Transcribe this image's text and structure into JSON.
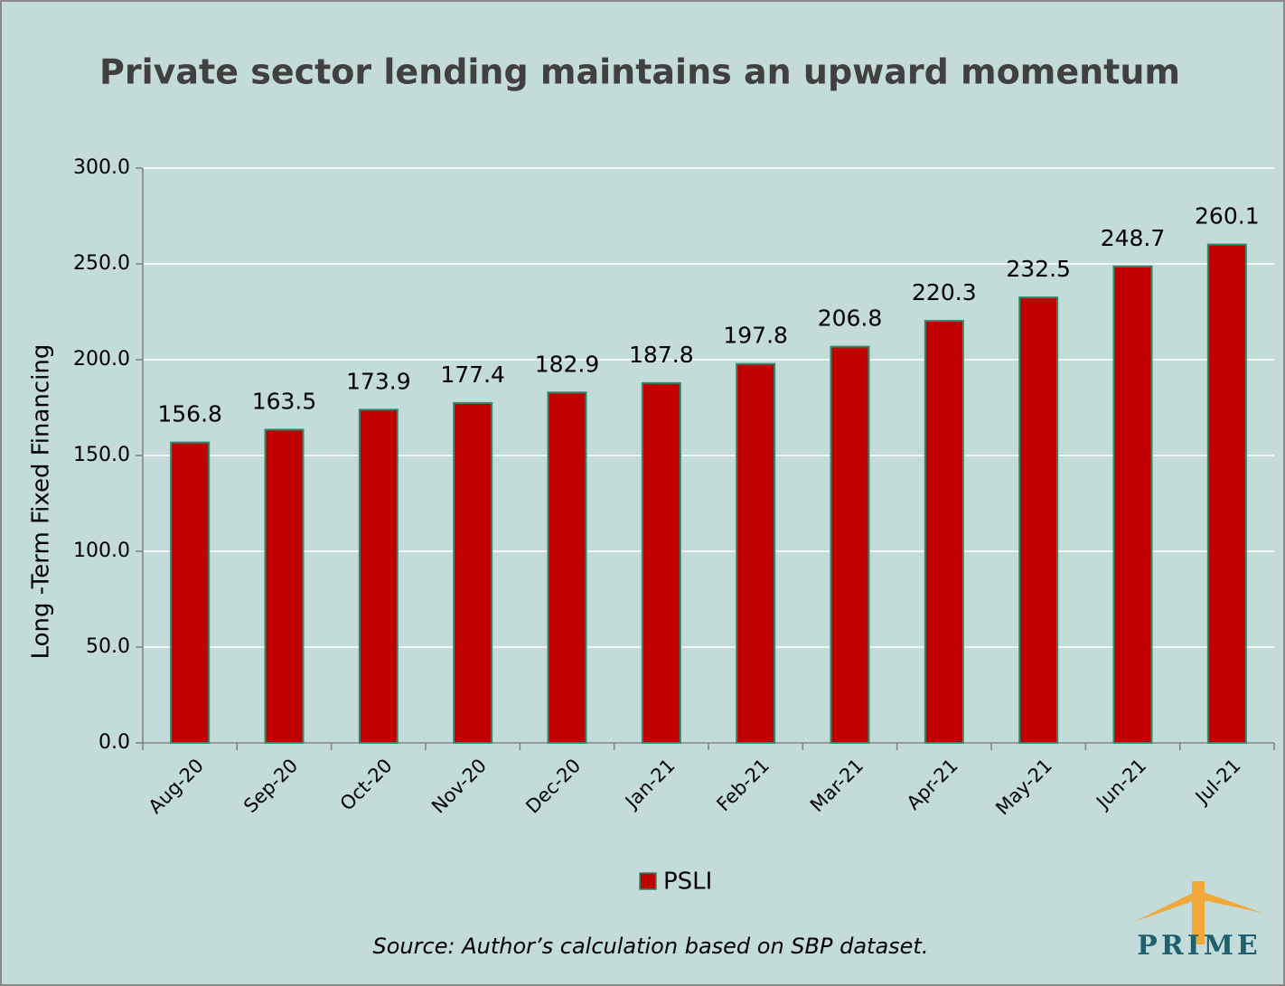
{
  "chart_data": {
    "type": "bar",
    "title": "Private sector lending maintains an upward momentum",
    "ylabel": "Long -Term Fixed Financing",
    "categories": [
      "Aug-20",
      "Sep-20",
      "Oct-20",
      "Nov-20",
      "Dec-20",
      "Jan-21",
      "Feb-21",
      "Mar-21",
      "Apr-21",
      "May-21",
      "Jun-21",
      "Jul-21"
    ],
    "series": [
      {
        "name": "PSLI",
        "color": "#c00000",
        "values": [
          156.8,
          163.5,
          173.9,
          177.4,
          182.9,
          187.8,
          197.8,
          206.8,
          220.3,
          232.5,
          248.7,
          260.1
        ]
      }
    ],
    "ylim": [
      0,
      300
    ],
    "yticks": [
      {
        "value": 0,
        "label": "0.0"
      },
      {
        "value": 50,
        "label": "50.0"
      },
      {
        "value": 100,
        "label": "100.0"
      },
      {
        "value": 150,
        "label": "150.0"
      },
      {
        "value": 200,
        "label": "200.0"
      },
      {
        "value": 250,
        "label": "250.0"
      },
      {
        "value": 300,
        "label": "300.0"
      }
    ],
    "grid": true,
    "legend": "bottom",
    "source": "Source: Author’s calculation based on SBP dataset.",
    "logo": "PRIME"
  }
}
